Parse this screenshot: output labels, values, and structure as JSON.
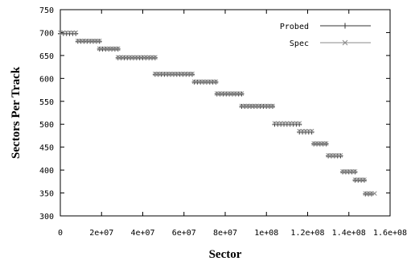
{
  "chart_data": {
    "type": "scatter",
    "xlabel": "Sector",
    "ylabel": "Sectors Per Track",
    "xlim": [
      0,
      160000000
    ],
    "ylim": [
      300,
      750
    ],
    "x_ticks": [
      "0",
      "2e+07",
      "4e+07",
      "6e+07",
      "8e+07",
      "1e+08",
      "1.2e+08",
      "1.4e+08",
      "1.6e+08"
    ],
    "y_ticks": [
      "300",
      "350",
      "400",
      "450",
      "500",
      "550",
      "600",
      "650",
      "700",
      "750"
    ],
    "grid": false,
    "legend_position": "top-right",
    "colors": {
      "axis": "#000000",
      "probed": "#333333",
      "spec": "#8a8a8a"
    },
    "series": [
      {
        "name": "Probed",
        "marker": "plus",
        "zones": [
          {
            "x_start": 0,
            "x_end": 8500000,
            "y": 698
          },
          {
            "x_start": 8500000,
            "x_end": 19000000,
            "y": 681
          },
          {
            "x_start": 19000000,
            "x_end": 28000000,
            "y": 664
          },
          {
            "x_start": 28000000,
            "x_end": 46000000,
            "y": 645
          },
          {
            "x_start": 46000000,
            "x_end": 65000000,
            "y": 609
          },
          {
            "x_start": 65000000,
            "x_end": 76000000,
            "y": 592
          },
          {
            "x_start": 76000000,
            "x_end": 88000000,
            "y": 566
          },
          {
            "x_start": 88000000,
            "x_end": 104000000,
            "y": 539
          },
          {
            "x_start": 104000000,
            "x_end": 116000000,
            "y": 500
          },
          {
            "x_start": 116000000,
            "x_end": 123000000,
            "y": 483
          },
          {
            "x_start": 123000000,
            "x_end": 130000000,
            "y": 457
          },
          {
            "x_start": 130000000,
            "x_end": 137000000,
            "y": 431
          },
          {
            "x_start": 137000000,
            "x_end": 143000000,
            "y": 396
          },
          {
            "x_start": 143000000,
            "x_end": 148000000,
            "y": 378
          },
          {
            "x_start": 148000000,
            "x_end": 152000000,
            "y": 348
          }
        ]
      },
      {
        "name": "Spec",
        "marker": "x",
        "zones": [
          {
            "x_start": 0,
            "x_end": 8500000,
            "y": 700
          },
          {
            "x_start": 8500000,
            "x_end": 19000000,
            "y": 682
          },
          {
            "x_start": 19000000,
            "x_end": 28000000,
            "y": 665
          },
          {
            "x_start": 28000000,
            "x_end": 46000000,
            "y": 646
          },
          {
            "x_start": 46000000,
            "x_end": 65000000,
            "y": 610
          },
          {
            "x_start": 65000000,
            "x_end": 76000000,
            "y": 593
          },
          {
            "x_start": 76000000,
            "x_end": 88000000,
            "y": 567
          },
          {
            "x_start": 88000000,
            "x_end": 104000000,
            "y": 540
          },
          {
            "x_start": 104000000,
            "x_end": 116000000,
            "y": 502
          },
          {
            "x_start": 116000000,
            "x_end": 123000000,
            "y": 485
          },
          {
            "x_start": 123000000,
            "x_end": 130000000,
            "y": 458
          },
          {
            "x_start": 130000000,
            "x_end": 137000000,
            "y": 432
          },
          {
            "x_start": 137000000,
            "x_end": 143000000,
            "y": 397
          },
          {
            "x_start": 143000000,
            "x_end": 148000000,
            "y": 379
          },
          {
            "x_start": 148000000,
            "x_end": 153000000,
            "y": 349
          }
        ]
      }
    ]
  }
}
